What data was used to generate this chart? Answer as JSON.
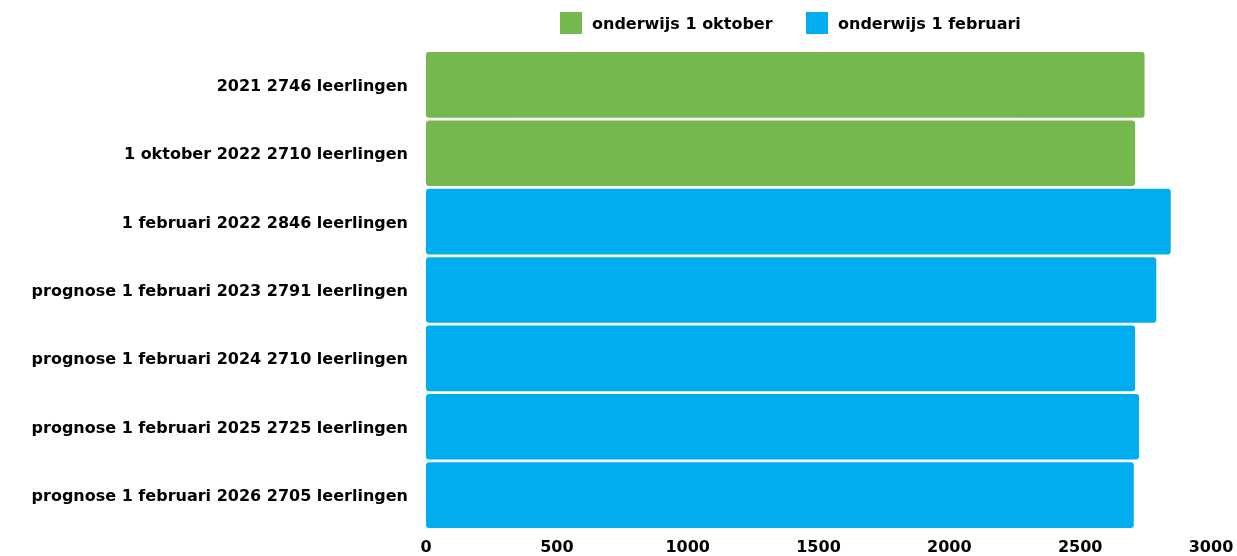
{
  "chart_data": {
    "type": "bar",
    "orientation": "horizontal",
    "stacked": true,
    "categories": [
      "2021 2746 leerlingen",
      "1 oktober 2022 2710 leerlingen",
      "1 februari 2022 2846 leerlingen",
      "prognose 1 februari 2023 2791 leerlingen",
      "prognose 1 februari 2024 2710 leerlingen",
      "prognose 1 februari 2025 2725 leerlingen",
      "prognose 1 februari 2026 2705 leerlingen"
    ],
    "series": [
      {
        "name": "onderwijs 1 oktober",
        "color": "#74b84e",
        "values": [
          2746,
          2710,
          null,
          null,
          null,
          null,
          null
        ]
      },
      {
        "name": "onderwijs 1 februari",
        "color": "#00adee",
        "values": [
          null,
          null,
          2846,
          2791,
          2710,
          2725,
          2705
        ]
      }
    ],
    "xlim": [
      0,
      3000
    ],
    "xticks": [
      0,
      500,
      1000,
      1500,
      2000,
      2500,
      3000
    ],
    "legend": "top"
  }
}
